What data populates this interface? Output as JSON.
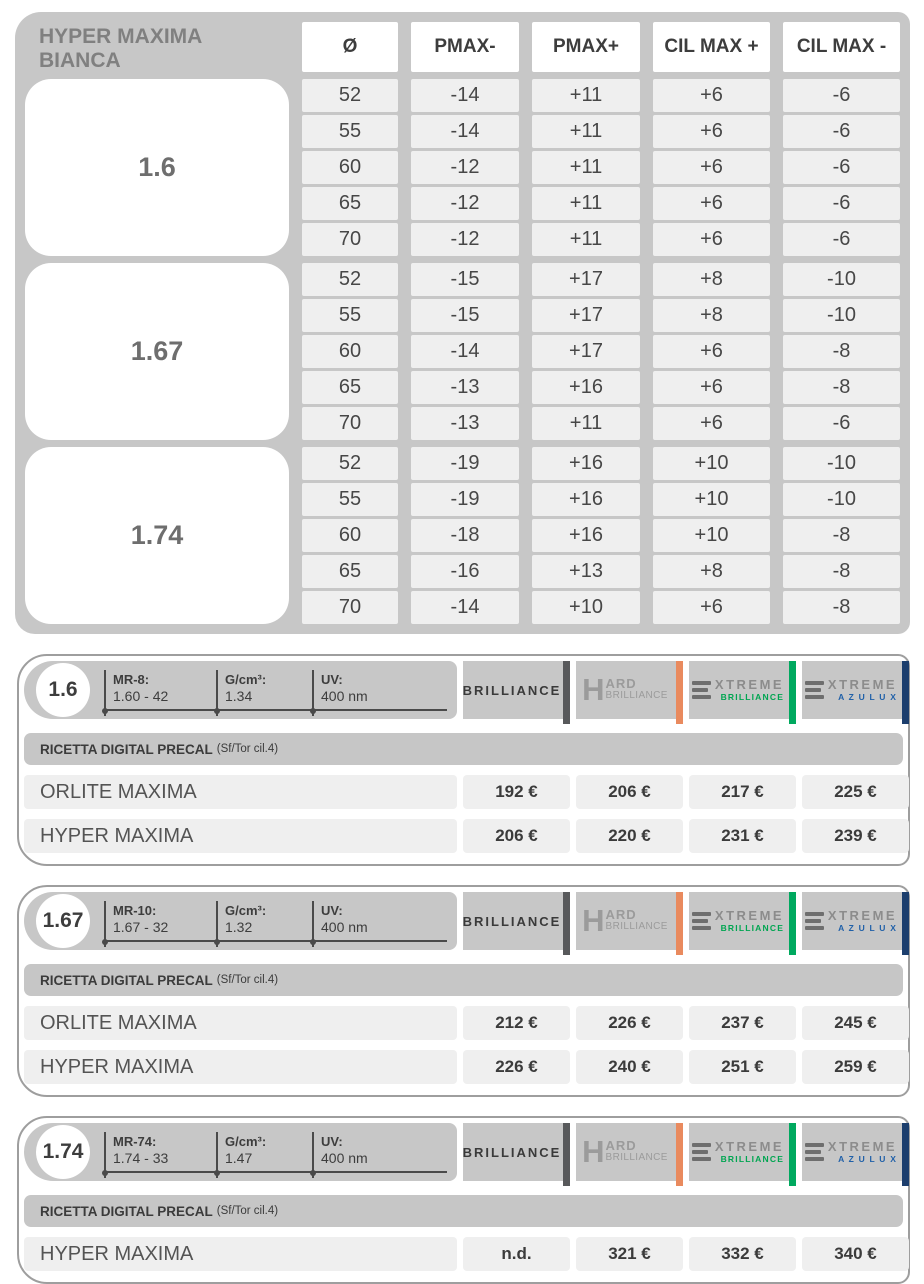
{
  "page": {
    "title_line1": "HYPER MAXIMA",
    "title_line2": "BIANCA"
  },
  "colors": {
    "panel_gray": "#c7c7c7",
    "cell_light": "#efefef",
    "text_dark": "#3d3d3d",
    "title_gray": "#808080"
  },
  "limits_table": {
    "columns": [
      "Ø",
      "PMAX-",
      "PMAX+",
      "CIL MAX +",
      "CIL MAX -"
    ],
    "groups": [
      {
        "index": "1.6",
        "rows": [
          [
            "52",
            "-14",
            "+11",
            "+6",
            "-6"
          ],
          [
            "55",
            "-14",
            "+11",
            "+6",
            "-6"
          ],
          [
            "60",
            "-12",
            "+11",
            "+6",
            "-6"
          ],
          [
            "65",
            "-12",
            "+11",
            "+6",
            "-6"
          ],
          [
            "70",
            "-12",
            "+11",
            "+6",
            "-6"
          ]
        ]
      },
      {
        "index": "1.67",
        "rows": [
          [
            "52",
            "-15",
            "+17",
            "+8",
            "-10"
          ],
          [
            "55",
            "-15",
            "+17",
            "+8",
            "-10"
          ],
          [
            "60",
            "-14",
            "+17",
            "+6",
            "-8"
          ],
          [
            "65",
            "-13",
            "+16",
            "+6",
            "-8"
          ],
          [
            "70",
            "-13",
            "+11",
            "+6",
            "-6"
          ]
        ]
      },
      {
        "index": "1.74",
        "rows": [
          [
            "52",
            "-19",
            "+16",
            "+10",
            "-10"
          ],
          [
            "55",
            "-19",
            "+16",
            "+10",
            "-10"
          ],
          [
            "60",
            "-18",
            "+16",
            "+10",
            "-8"
          ],
          [
            "65",
            "-16",
            "+13",
            "+8",
            "-8"
          ],
          [
            "70",
            "-14",
            "+10",
            "+6",
            "-8"
          ]
        ]
      }
    ]
  },
  "brands": [
    {
      "id": "brilliance",
      "type": "brilliance",
      "wordmark": "BRILLIANCE",
      "text_color": "#3a3a3a",
      "bar_color": "#58595b"
    },
    {
      "id": "hard-brilliance",
      "type": "hard",
      "initial": "H",
      "top": "ARD",
      "bottom": "BRILLIANCE",
      "text_color": "#9b9b9b",
      "bar_color": "#e98a5e"
    },
    {
      "id": "extreme-brilliance",
      "type": "extreme",
      "top": "XTREME",
      "bottom": "BRILLIANCE",
      "top_color": "#8c8c8c",
      "bottom_color": "#00a551",
      "bar_color": "#00a95f"
    },
    {
      "id": "extreme-azulux",
      "type": "extreme",
      "top": "XTREME",
      "bottom": "A Z U L U X",
      "top_color": "#8c8c8c",
      "bottom_color": "#2060a8",
      "bar_color": "#1c3e6d"
    }
  ],
  "panels": [
    {
      "index": "1.6",
      "specs": [
        {
          "label": "MR-8:",
          "value": "1.60 - 42"
        },
        {
          "label": "G/cm³:",
          "value": "1.34"
        },
        {
          "label": "UV:",
          "value": "400 nm"
        }
      ],
      "section_label": "RICETTA DIGITAL PRECAL",
      "section_note": "(Sf/Tor cil.4)",
      "rows": [
        {
          "name": "ORLITE MAXIMA",
          "prices": [
            "192 €",
            "206 €",
            "217 €",
            "225 €"
          ]
        },
        {
          "name": "HYPER MAXIMA",
          "prices": [
            "206 €",
            "220 €",
            "231 €",
            "239 €"
          ]
        }
      ]
    },
    {
      "index": "1.67",
      "specs": [
        {
          "label": "MR-10:",
          "value": "1.67 - 32"
        },
        {
          "label": "G/cm³:",
          "value": "1.32"
        },
        {
          "label": "UV:",
          "value": "400 nm"
        }
      ],
      "section_label": "RICETTA DIGITAL PRECAL",
      "section_note": "(Sf/Tor cil.4)",
      "rows": [
        {
          "name": "ORLITE MAXIMA",
          "prices": [
            "212 €",
            "226 €",
            "237 €",
            "245 €"
          ]
        },
        {
          "name": "HYPER MAXIMA",
          "prices": [
            "226 €",
            "240 €",
            "251 €",
            "259 €"
          ]
        }
      ]
    },
    {
      "index": "1.74",
      "specs": [
        {
          "label": "MR-74:",
          "value": "1.74 - 33"
        },
        {
          "label": "G/cm³:",
          "value": "1.47"
        },
        {
          "label": "UV:",
          "value": "400 nm"
        }
      ],
      "section_label": "RICETTA DIGITAL PRECAL",
      "section_note": "(Sf/Tor cil.4)",
      "rows": [
        {
          "name": "HYPER MAXIMA",
          "prices": [
            "n.d.",
            "321 €",
            "332 €",
            "340 €"
          ]
        }
      ]
    }
  ]
}
